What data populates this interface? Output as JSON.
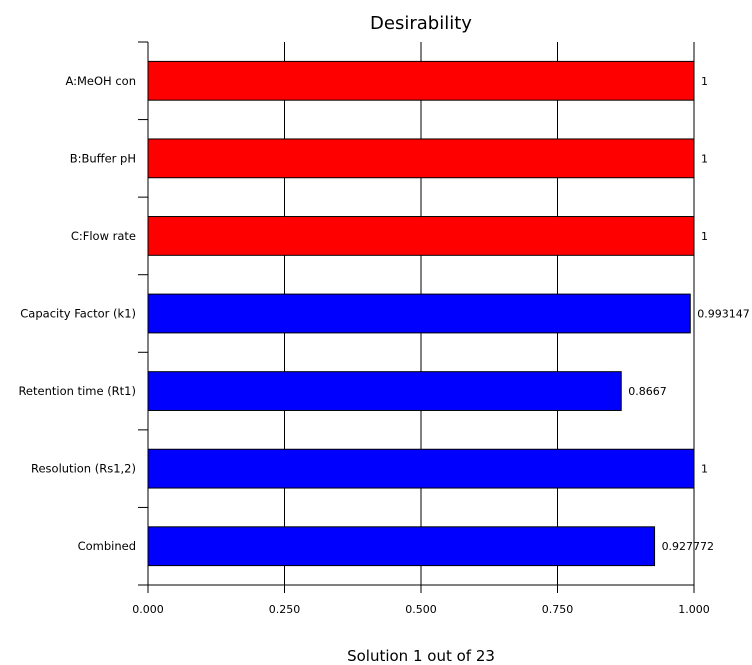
{
  "chart_data": {
    "type": "bar",
    "orientation": "horizontal",
    "title": "Desirability",
    "footer": "Solution 1 out of 23",
    "categories": [
      "A:MeOH con",
      "B:Buffer pH",
      "C:Flow rate",
      "Capacity Factor (k1)",
      "Retention time (Rt1)",
      "Resolution (Rs1,2)",
      "Combined"
    ],
    "values": [
      1,
      1,
      1,
      0.993147,
      0.8667,
      1,
      0.927772
    ],
    "data_labels": [
      "1",
      "1",
      "1",
      "0.993147",
      "0.8667",
      "1",
      "0.927772"
    ],
    "bar_colors": [
      "#ff0000",
      "#ff0000",
      "#ff0000",
      "#0000ff",
      "#0000ff",
      "#0000ff",
      "#0000ff"
    ],
    "xlim": [
      0,
      1
    ],
    "x_ticks": [
      0,
      0.25,
      0.5,
      0.75,
      1
    ],
    "x_tick_labels": [
      "0.000",
      "0.250",
      "0.500",
      "0.750",
      "1.000"
    ],
    "grid": true
  }
}
